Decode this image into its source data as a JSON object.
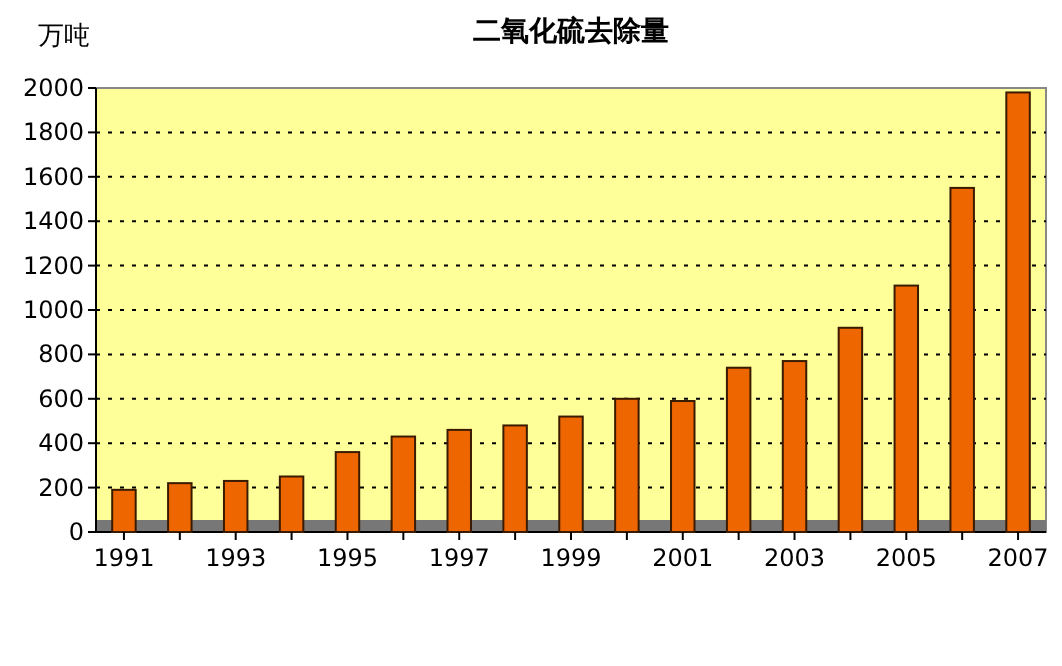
{
  "chart_data": {
    "type": "bar",
    "title": "二氧化硫去除量",
    "ylabel": "万吨",
    "categories": [
      "1991",
      null,
      "1993",
      null,
      "1995",
      null,
      "1997",
      null,
      "1999",
      null,
      "2001",
      null,
      "2003",
      null,
      "2005",
      null,
      "2007"
    ],
    "values": [
      190,
      220,
      230,
      250,
      360,
      430,
      460,
      480,
      520,
      600,
      590,
      740,
      770,
      920,
      1110,
      1550,
      1980
    ],
    "color": "#ee6600",
    "ylim": [
      0,
      2000
    ],
    "yticks": [
      0,
      200,
      400,
      600,
      800,
      1000,
      1200,
      1400,
      1600,
      1800,
      2000
    ],
    "grid": "y"
  }
}
